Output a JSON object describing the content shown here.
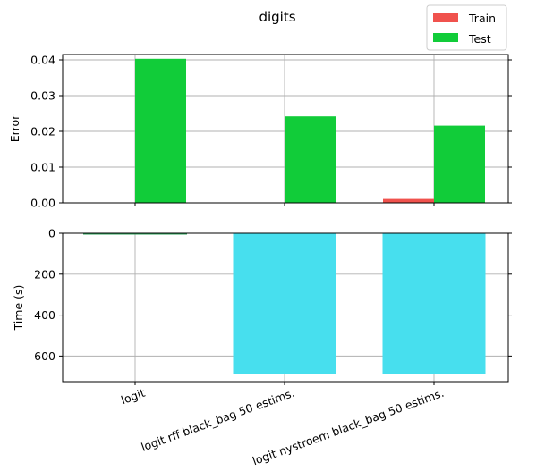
{
  "chart_data": {
    "type": "bar",
    "title": "digits",
    "categories": [
      "logit",
      "logit rff black_bag 50 estims.",
      "logit nystroem black_bag 50 estims."
    ],
    "legend": {
      "placement": "top-right",
      "entries": [
        {
          "name": "Train",
          "color": "#f0524d"
        },
        {
          "name": "Test",
          "color": "#11cc39"
        }
      ]
    },
    "error_panel": {
      "ylabel": "Error",
      "ylim": [
        0,
        0.0415
      ],
      "yticks": [
        0.0,
        0.01,
        0.02,
        0.03,
        0.04
      ],
      "ytick_labels": [
        "0.00",
        "0.01",
        "0.02",
        "0.03",
        "0.04"
      ],
      "grid": true,
      "series": [
        {
          "name": "Train",
          "color": "#f0524d",
          "values": [
            0.0,
            0.0,
            0.0011
          ]
        },
        {
          "name": "Test",
          "color": "#11cc39",
          "values": [
            0.0403,
            0.0242,
            0.0216
          ]
        }
      ]
    },
    "time_panel": {
      "ylabel": "Time (s)",
      "ylim": [
        0,
        725
      ],
      "inverted": true,
      "yticks": [
        0,
        200,
        400,
        600
      ],
      "ytick_labels": [
        "0",
        "200",
        "400",
        "600"
      ],
      "grid": true,
      "series": [
        {
          "name": "Time",
          "color": "#47dfee",
          "edge_color": "#2ca05a",
          "values": [
            3,
            690,
            690
          ]
        }
      ]
    }
  }
}
